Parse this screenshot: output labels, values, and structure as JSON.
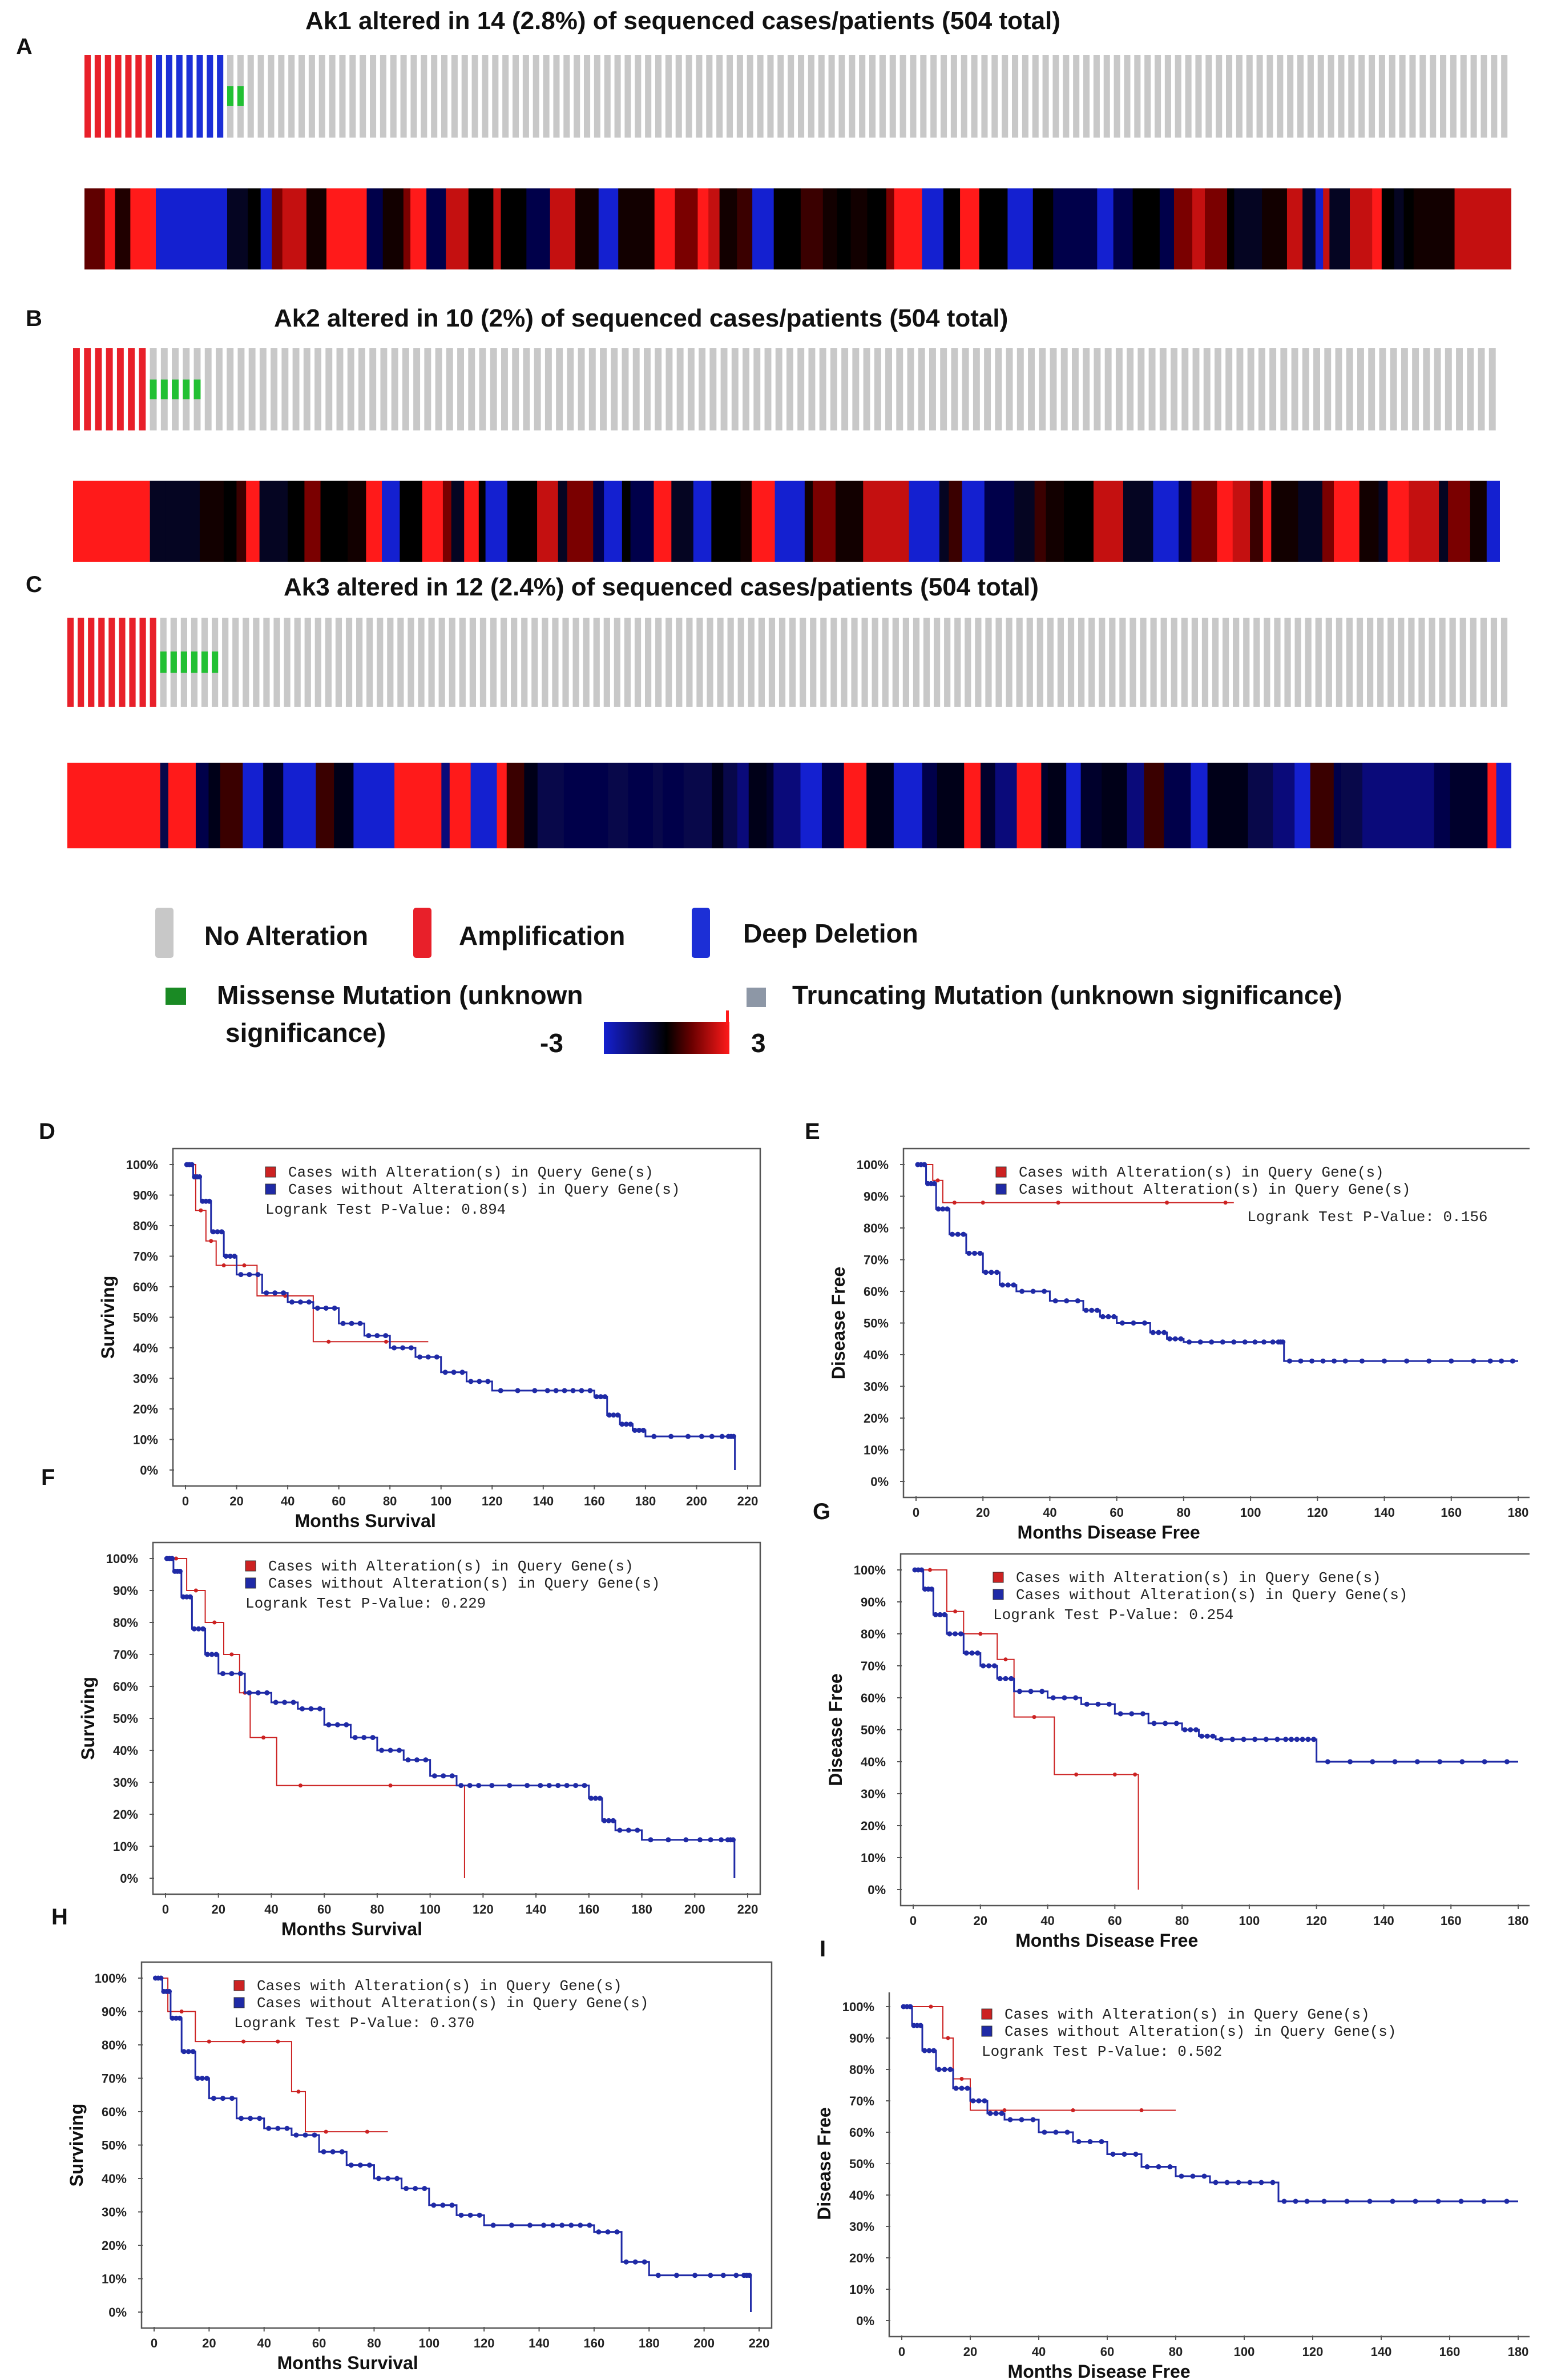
{
  "colors": {
    "amplification": "#e8202a",
    "deep_deletion": "#1c2fd6",
    "no_alteration": "#c8c8c8",
    "missense": "#22c033",
    "missense_legend": "#1a8a24",
    "truncating": "#8d97a6",
    "km_altered": "#cc2222",
    "km_unaltered": "#1f2aa6",
    "heat_low": "#1420d0",
    "heat_mid": "#000000",
    "heat_high": "#ff1a1a"
  },
  "oncoprints": [
    {
      "letter": "A",
      "title": "Ak1 altered in 14 (2.8%) of  sequenced cases/patients (504 total)",
      "amp": 7,
      "del": 7,
      "mis": 2,
      "total": 140,
      "heat_seed": 11
    },
    {
      "letter": "B",
      "title": "Ak2 altered in 10 (2%) of  sequenced cases/patients (504 total)",
      "amp": 7,
      "del": 0,
      "mis": 5,
      "total": 130,
      "heat_seed": 29
    },
    {
      "letter": "C",
      "title": "Ak3 altered in 12 (2.4%) of  sequenced cases/patients (504 total)",
      "amp": 9,
      "del": 0,
      "mis": 6,
      "total": 140,
      "heat_seed": 47
    }
  ],
  "legend": {
    "no_alteration": "No Alteration",
    "amplification": "Amplification",
    "deep_deletion": "Deep Deletion",
    "missense_line1": "Missense Mutation (unknown",
    "missense_line2": "significance)",
    "truncating": "Truncating Mutation (unknown significance)",
    "scale_min": "-3",
    "scale_max": "3"
  },
  "chart_data": [
    {
      "id": "D",
      "type": "line",
      "ylabel": "Surviving",
      "xlabel": "Months Survival",
      "xlim": [
        0,
        220
      ],
      "xticks": [
        0,
        20,
        40,
        60,
        80,
        100,
        120,
        140,
        160,
        180,
        200,
        220
      ],
      "ylim": [
        0,
        100
      ],
      "yticks": [
        "0%",
        "10%",
        "20%",
        "30%",
        "40%",
        "50%",
        "60%",
        "70%",
        "80%",
        "90%",
        "100%"
      ],
      "legend": [
        "Cases with Alteration(s) in Query Gene(s)",
        "Cases without Alteration(s) in Query Gene(s)"
      ],
      "pvalue": "Logrank Test P-Value: 0.894",
      "series": [
        {
          "name": "altered",
          "x": [
            0,
            4,
            8,
            12,
            18,
            28,
            50,
            62,
            95
          ],
          "y": [
            100,
            85,
            75,
            67,
            67,
            57,
            42,
            42,
            42
          ]
        },
        {
          "name": "unaltered",
          "x": [
            0,
            3,
            6,
            10,
            15,
            20,
            30,
            40,
            50,
            60,
            70,
            80,
            90,
            100,
            110,
            120,
            140,
            150,
            160,
            165,
            170,
            175,
            180,
            200,
            212,
            215
          ],
          "y": [
            100,
            96,
            88,
            78,
            70,
            64,
            58,
            55,
            53,
            48,
            44,
            40,
            37,
            32,
            29,
            26,
            26,
            26,
            24,
            18,
            15,
            13,
            11,
            11,
            11,
            0
          ]
        }
      ]
    },
    {
      "id": "E",
      "type": "line",
      "ylabel": "Disease Free",
      "xlabel": "Months Disease Free",
      "xlim": [
        0,
        180
      ],
      "xticks": [
        0,
        20,
        40,
        60,
        80,
        100,
        120,
        140,
        160,
        180
      ],
      "ylim": [
        0,
        100
      ],
      "yticks": [
        "0%",
        "10%",
        "20%",
        "30%",
        "40%",
        "50%",
        "60%",
        "70%",
        "80%",
        "90%",
        "100%"
      ],
      "legend": [
        "Cases with Alteration(s) in Query Gene(s)",
        "Cases without Alteration(s) in Query Gene(s)"
      ],
      "pvalue": "Logrank Test P-Value: 0.156",
      "series": [
        {
          "name": "altered",
          "x": [
            0,
            5,
            8,
            15,
            25,
            60,
            90,
            95
          ],
          "y": [
            100,
            95,
            88,
            88,
            88,
            88,
            88,
            88
          ]
        },
        {
          "name": "unaltered",
          "x": [
            0,
            3,
            6,
            10,
            15,
            20,
            25,
            30,
            40,
            50,
            55,
            60,
            70,
            75,
            80,
            90,
            100,
            108,
            110,
            120,
            130,
            150,
            170,
            180
          ],
          "y": [
            100,
            94,
            86,
            78,
            72,
            66,
            62,
            60,
            57,
            54,
            52,
            50,
            47,
            45,
            44,
            44,
            44,
            44,
            38,
            38,
            38,
            38,
            38,
            38
          ]
        }
      ]
    },
    {
      "id": "F",
      "type": "line",
      "ylabel": "Surviving",
      "xlabel": "Months Survival",
      "xlim": [
        0,
        220
      ],
      "xticks": [
        0,
        20,
        40,
        60,
        80,
        100,
        120,
        140,
        160,
        180,
        200,
        220
      ],
      "ylim": [
        0,
        100
      ],
      "yticks": [
        "0%",
        "10%",
        "20%",
        "30%",
        "40%",
        "50%",
        "60%",
        "70%",
        "80%",
        "90%",
        "100%"
      ],
      "legend": [
        "Cases with Alteration(s) in Query Gene(s)",
        "Cases without Alteration(s) in Query Gene(s)"
      ],
      "pvalue": "Logrank Test P-Value: 0.229",
      "series": [
        {
          "name": "altered",
          "x": [
            0,
            8,
            15,
            22,
            28,
            32,
            42,
            60,
            110,
            113
          ],
          "y": [
            100,
            90,
            80,
            70,
            58,
            44,
            29,
            29,
            29,
            0
          ]
        },
        {
          "name": "unaltered",
          "x": [
            0,
            3,
            6,
            10,
            15,
            20,
            30,
            40,
            50,
            60,
            70,
            80,
            90,
            100,
            110,
            120,
            140,
            150,
            160,
            165,
            170,
            180,
            200,
            212,
            215
          ],
          "y": [
            100,
            96,
            88,
            78,
            70,
            64,
            58,
            55,
            53,
            48,
            44,
            40,
            37,
            32,
            29,
            29,
            29,
            29,
            25,
            18,
            15,
            12,
            12,
            12,
            0
          ]
        }
      ]
    },
    {
      "id": "G",
      "type": "line",
      "ylabel": "Disease Free",
      "xlabel": "Months Disease Free",
      "xlim": [
        0,
        180
      ],
      "xticks": [
        0,
        20,
        40,
        60,
        80,
        100,
        120,
        140,
        160,
        180
      ],
      "ylim": [
        0,
        100
      ],
      "yticks": [
        "0%",
        "10%",
        "20%",
        "30%",
        "40%",
        "50%",
        "60%",
        "70%",
        "80%",
        "90%",
        "100%"
      ],
      "legend": [
        "Cases with Alteration(s) in Query Gene(s)",
        "Cases without Alteration(s) in Query Gene(s)"
      ],
      "pvalue": "Logrank Test P-Value: 0.254",
      "series": [
        {
          "name": "altered",
          "x": [
            0,
            10,
            15,
            25,
            30,
            42,
            55,
            65,
            67
          ],
          "y": [
            100,
            87,
            80,
            72,
            54,
            36,
            36,
            36,
            0
          ]
        },
        {
          "name": "unaltered",
          "x": [
            0,
            3,
            6,
            10,
            15,
            20,
            25,
            30,
            40,
            50,
            60,
            70,
            80,
            85,
            90,
            100,
            110,
            115,
            120,
            140,
            160,
            180
          ],
          "y": [
            100,
            94,
            86,
            80,
            74,
            70,
            66,
            62,
            60,
            58,
            55,
            52,
            50,
            48,
            47,
            47,
            47,
            47,
            40,
            40,
            40,
            40
          ]
        }
      ]
    },
    {
      "id": "H",
      "type": "line",
      "ylabel": "Surviving",
      "xlabel": "Months Survival",
      "xlim": [
        0,
        220
      ],
      "xticks": [
        0,
        20,
        40,
        60,
        80,
        100,
        120,
        140,
        160,
        180,
        200,
        220
      ],
      "ylim": [
        0,
        100
      ],
      "yticks": [
        "0%",
        "10%",
        "20%",
        "30%",
        "40%",
        "50%",
        "60%",
        "70%",
        "80%",
        "90%",
        "100%"
      ],
      "legend": [
        "Cases with Alteration(s) in Query Gene(s)",
        "Cases without Alteration(s) in Query Gene(s)"
      ],
      "pvalue": "Logrank Test P-Value: 0.370",
      "series": [
        {
          "name": "altered",
          "x": [
            0,
            5,
            15,
            25,
            40,
            50,
            55,
            70,
            85
          ],
          "y": [
            100,
            90,
            81,
            81,
            81,
            66,
            54,
            54,
            54
          ]
        },
        {
          "name": "unaltered",
          "x": [
            0,
            3,
            6,
            10,
            15,
            20,
            30,
            40,
            50,
            60,
            70,
            80,
            90,
            100,
            110,
            120,
            140,
            150,
            160,
            170,
            180,
            200,
            214,
            217
          ],
          "y": [
            100,
            96,
            88,
            78,
            70,
            64,
            58,
            55,
            53,
            48,
            44,
            40,
            37,
            32,
            29,
            26,
            26,
            26,
            24,
            15,
            11,
            11,
            11,
            0
          ]
        }
      ]
    },
    {
      "id": "I",
      "type": "line",
      "ylabel": "Disease Free",
      "xlabel": "Months Disease Free",
      "xlim": [
        0,
        180
      ],
      "xticks": [
        0,
        20,
        40,
        60,
        80,
        100,
        120,
        140,
        160,
        180
      ],
      "ylim": [
        0,
        100
      ],
      "yticks": [
        "0%",
        "10%",
        "20%",
        "30%",
        "40%",
        "50%",
        "60%",
        "70%",
        "80%",
        "90%",
        "100%"
      ],
      "legend": [
        "Cases with Alteration(s) in Query Gene(s)",
        "Cases without Alteration(s) in Query Gene(s)"
      ],
      "pvalue": "Logrank Test P-Value: 0.502",
      "series": [
        {
          "name": "altered",
          "x": [
            0,
            5,
            12,
            15,
            20,
            40,
            60,
            80
          ],
          "y": [
            100,
            100,
            90,
            77,
            67,
            67,
            67,
            67
          ]
        },
        {
          "name": "unaltered",
          "x": [
            0,
            3,
            6,
            10,
            15,
            20,
            25,
            30,
            40,
            50,
            60,
            70,
            80,
            90,
            100,
            110,
            120,
            140,
            160,
            180
          ],
          "y": [
            100,
            94,
            86,
            80,
            74,
            70,
            66,
            64,
            60,
            57,
            53,
            49,
            46,
            44,
            44,
            38,
            38,
            38,
            38,
            38
          ]
        }
      ]
    }
  ]
}
